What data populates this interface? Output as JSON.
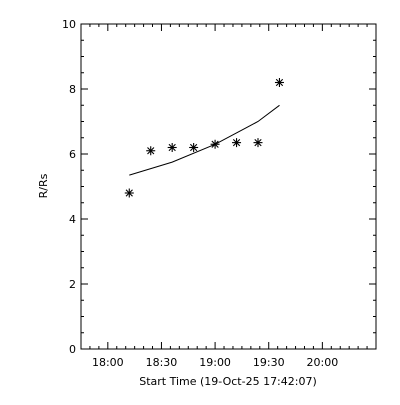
{
  "chart_data": {
    "type": "scatter",
    "title": "",
    "xlabel": "Start Time (19-Oct-25 17:42:07)",
    "ylabel": "R/Rs",
    "xlim": [
      "17:45",
      "20:30"
    ],
    "ylim": [
      0,
      10
    ],
    "grid": false,
    "x_ticks": [
      "18:00",
      "18:30",
      "19:00",
      "19:30",
      "20:00"
    ],
    "y_ticks": [
      "0",
      "2",
      "4",
      "6",
      "8",
      "10"
    ],
    "series": [
      {
        "marker": "asterisk",
        "x": [
          "18:12",
          "18:24",
          "18:36",
          "18:48",
          "19:00",
          "19:12",
          "19:24",
          "19:36"
        ],
        "y": [
          4.8,
          6.1,
          6.2,
          6.2,
          6.3,
          6.35,
          6.35,
          8.2
        ]
      },
      {
        "style": "line",
        "x": [
          "18:12",
          "18:36",
          "19:00",
          "19:24",
          "19:36"
        ],
        "y": [
          5.35,
          5.75,
          6.3,
          7.0,
          7.5
        ]
      }
    ]
  }
}
